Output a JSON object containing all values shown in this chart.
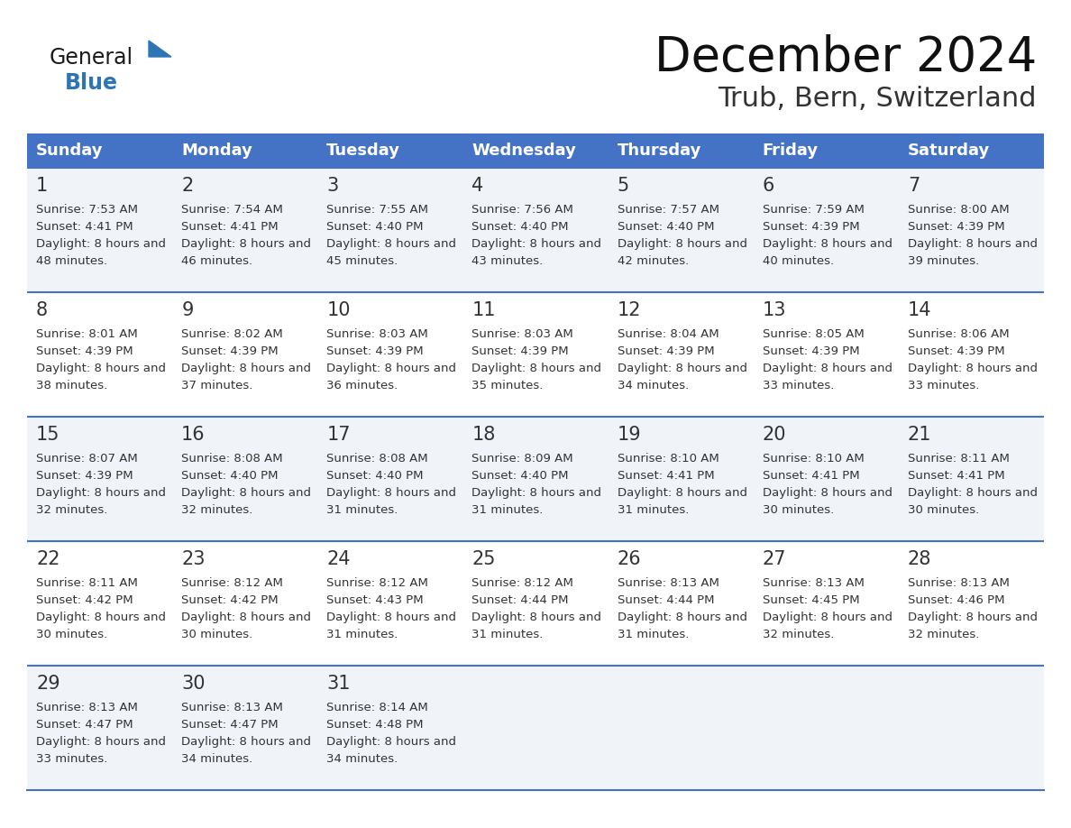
{
  "title": "December 2024",
  "subtitle": "Trub, Bern, Switzerland",
  "header_color": "#4472C4",
  "header_text_color": "#FFFFFF",
  "day_names": [
    "Sunday",
    "Monday",
    "Tuesday",
    "Wednesday",
    "Thursday",
    "Friday",
    "Saturday"
  ],
  "bg_color": "#FFFFFF",
  "row_colors": [
    "#F0F4F8",
    "#FFFFFF",
    "#F0F4F8",
    "#FFFFFF",
    "#F0F4F8"
  ],
  "border_color": "#4472C4",
  "text_color": "#333333",
  "logo_general_color": "#1a1a1a",
  "logo_blue_color": "#2E75B6",
  "weeks": [
    [
      {
        "day": 1,
        "sunrise": "7:53 AM",
        "sunset": "4:41 PM",
        "daylight": "8 hours and 48 minutes"
      },
      {
        "day": 2,
        "sunrise": "7:54 AM",
        "sunset": "4:41 PM",
        "daylight": "8 hours and 46 minutes"
      },
      {
        "day": 3,
        "sunrise": "7:55 AM",
        "sunset": "4:40 PM",
        "daylight": "8 hours and 45 minutes"
      },
      {
        "day": 4,
        "sunrise": "7:56 AM",
        "sunset": "4:40 PM",
        "daylight": "8 hours and 43 minutes"
      },
      {
        "day": 5,
        "sunrise": "7:57 AM",
        "sunset": "4:40 PM",
        "daylight": "8 hours and 42 minutes"
      },
      {
        "day": 6,
        "sunrise": "7:59 AM",
        "sunset": "4:39 PM",
        "daylight": "8 hours and 40 minutes"
      },
      {
        "day": 7,
        "sunrise": "8:00 AM",
        "sunset": "4:39 PM",
        "daylight": "8 hours and 39 minutes"
      }
    ],
    [
      {
        "day": 8,
        "sunrise": "8:01 AM",
        "sunset": "4:39 PM",
        "daylight": "8 hours and 38 minutes"
      },
      {
        "day": 9,
        "sunrise": "8:02 AM",
        "sunset": "4:39 PM",
        "daylight": "8 hours and 37 minutes"
      },
      {
        "day": 10,
        "sunrise": "8:03 AM",
        "sunset": "4:39 PM",
        "daylight": "8 hours and 36 minutes"
      },
      {
        "day": 11,
        "sunrise": "8:03 AM",
        "sunset": "4:39 PM",
        "daylight": "8 hours and 35 minutes"
      },
      {
        "day": 12,
        "sunrise": "8:04 AM",
        "sunset": "4:39 PM",
        "daylight": "8 hours and 34 minutes"
      },
      {
        "day": 13,
        "sunrise": "8:05 AM",
        "sunset": "4:39 PM",
        "daylight": "8 hours and 33 minutes"
      },
      {
        "day": 14,
        "sunrise": "8:06 AM",
        "sunset": "4:39 PM",
        "daylight": "8 hours and 33 minutes"
      }
    ],
    [
      {
        "day": 15,
        "sunrise": "8:07 AM",
        "sunset": "4:39 PM",
        "daylight": "8 hours and 32 minutes"
      },
      {
        "day": 16,
        "sunrise": "8:08 AM",
        "sunset": "4:40 PM",
        "daylight": "8 hours and 32 minutes"
      },
      {
        "day": 17,
        "sunrise": "8:08 AM",
        "sunset": "4:40 PM",
        "daylight": "8 hours and 31 minutes"
      },
      {
        "day": 18,
        "sunrise": "8:09 AM",
        "sunset": "4:40 PM",
        "daylight": "8 hours and 31 minutes"
      },
      {
        "day": 19,
        "sunrise": "8:10 AM",
        "sunset": "4:41 PM",
        "daylight": "8 hours and 31 minutes"
      },
      {
        "day": 20,
        "sunrise": "8:10 AM",
        "sunset": "4:41 PM",
        "daylight": "8 hours and 30 minutes"
      },
      {
        "day": 21,
        "sunrise": "8:11 AM",
        "sunset": "4:41 PM",
        "daylight": "8 hours and 30 minutes"
      }
    ],
    [
      {
        "day": 22,
        "sunrise": "8:11 AM",
        "sunset": "4:42 PM",
        "daylight": "8 hours and 30 minutes"
      },
      {
        "day": 23,
        "sunrise": "8:12 AM",
        "sunset": "4:42 PM",
        "daylight": "8 hours and 30 minutes"
      },
      {
        "day": 24,
        "sunrise": "8:12 AM",
        "sunset": "4:43 PM",
        "daylight": "8 hours and 31 minutes"
      },
      {
        "day": 25,
        "sunrise": "8:12 AM",
        "sunset": "4:44 PM",
        "daylight": "8 hours and 31 minutes"
      },
      {
        "day": 26,
        "sunrise": "8:13 AM",
        "sunset": "4:44 PM",
        "daylight": "8 hours and 31 minutes"
      },
      {
        "day": 27,
        "sunrise": "8:13 AM",
        "sunset": "4:45 PM",
        "daylight": "8 hours and 32 minutes"
      },
      {
        "day": 28,
        "sunrise": "8:13 AM",
        "sunset": "4:46 PM",
        "daylight": "8 hours and 32 minutes"
      }
    ],
    [
      {
        "day": 29,
        "sunrise": "8:13 AM",
        "sunset": "4:47 PM",
        "daylight": "8 hours and 33 minutes"
      },
      {
        "day": 30,
        "sunrise": "8:13 AM",
        "sunset": "4:47 PM",
        "daylight": "8 hours and 34 minutes"
      },
      {
        "day": 31,
        "sunrise": "8:14 AM",
        "sunset": "4:48 PM",
        "daylight": "8 hours and 34 minutes"
      },
      null,
      null,
      null,
      null
    ]
  ]
}
